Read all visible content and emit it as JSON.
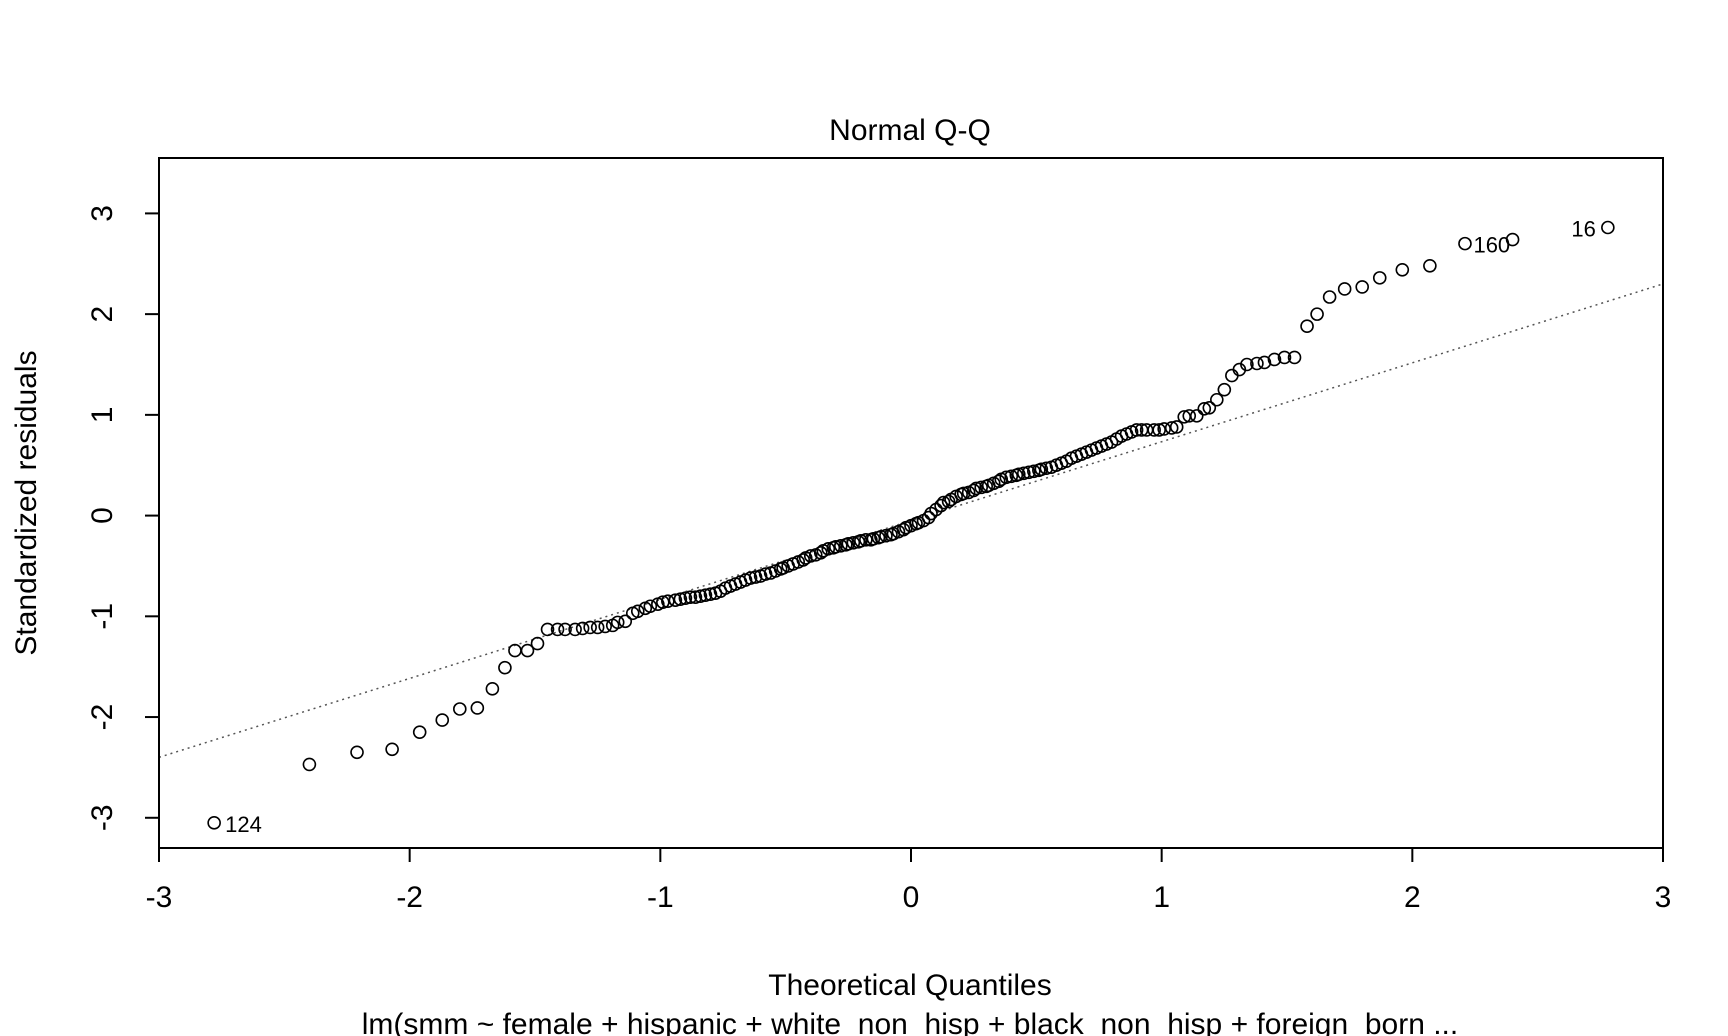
{
  "chart_data": {
    "type": "scatter",
    "title": "Normal Q-Q",
    "xlabel": "Theoretical Quantiles",
    "ylabel": "Standardized residuals",
    "subtitle": "lm(smm ~ female + hispanic + white_non_hisp + black_non_hisp + foreign_born ...",
    "xlim": [
      -3,
      3
    ],
    "ylim": [
      -3.3,
      3.55
    ],
    "x_ticks": [
      -3,
      -2,
      -1,
      0,
      1,
      2,
      3
    ],
    "y_ticks": [
      -3,
      -2,
      -1,
      0,
      1,
      2,
      3
    ],
    "grid": false,
    "legend": "none",
    "reference_line": {
      "style": "dotted",
      "x1": -3,
      "y1": -2.4,
      "x2": 3,
      "y2": 2.3
    },
    "labeled_points": [
      {
        "label": "124",
        "x": -2.78,
        "y": -3.05
      },
      {
        "label": "160",
        "x": 2.2,
        "y": 2.7
      },
      {
        "label": "16",
        "x": 2.78,
        "y": 2.86
      }
    ],
    "points": [
      [
        -2.78,
        -3.05
      ],
      [
        -2.4,
        -2.47
      ],
      [
        -2.21,
        -2.35
      ],
      [
        -2.07,
        -2.32
      ],
      [
        -1.96,
        -2.15
      ],
      [
        -1.87,
        -2.03
      ],
      [
        -1.8,
        -1.92
      ],
      [
        -1.73,
        -1.91
      ],
      [
        -1.67,
        -1.72
      ],
      [
        -1.62,
        -1.51
      ],
      [
        -1.58,
        -1.34
      ],
      [
        -1.53,
        -1.34
      ],
      [
        -1.49,
        -1.27
      ],
      [
        -1.45,
        -1.13
      ],
      [
        -1.41,
        -1.13
      ],
      [
        -1.38,
        -1.13
      ],
      [
        -1.34,
        -1.13
      ],
      [
        -1.31,
        -1.12
      ],
      [
        -1.28,
        -1.11
      ],
      [
        -1.25,
        -1.11
      ],
      [
        -1.22,
        -1.1
      ],
      [
        -1.19,
        -1.09
      ],
      [
        -1.17,
        -1.06
      ],
      [
        -1.14,
        -1.05
      ],
      [
        -1.11,
        -0.97
      ],
      [
        -1.09,
        -0.95
      ],
      [
        -1.06,
        -0.92
      ],
      [
        -1.04,
        -0.9
      ],
      [
        -1.01,
        -0.88
      ],
      [
        -0.99,
        -0.86
      ],
      [
        -0.97,
        -0.85
      ],
      [
        -0.94,
        -0.84
      ],
      [
        -0.92,
        -0.83
      ],
      [
        -0.9,
        -0.82
      ],
      [
        -0.88,
        -0.81
      ],
      [
        -0.86,
        -0.81
      ],
      [
        -0.84,
        -0.8
      ],
      [
        -0.82,
        -0.79
      ],
      [
        -0.8,
        -0.78
      ],
      [
        -0.78,
        -0.77
      ],
      [
        -0.76,
        -0.75
      ],
      [
        -0.74,
        -0.72
      ],
      [
        -0.72,
        -0.7
      ],
      [
        -0.7,
        -0.68
      ],
      [
        -0.68,
        -0.66
      ],
      [
        -0.66,
        -0.64
      ],
      [
        -0.64,
        -0.62
      ],
      [
        -0.62,
        -0.61
      ],
      [
        -0.6,
        -0.6
      ],
      [
        -0.58,
        -0.58
      ],
      [
        -0.56,
        -0.57
      ],
      [
        -0.54,
        -0.55
      ],
      [
        -0.52,
        -0.53
      ],
      [
        -0.51,
        -0.52
      ],
      [
        -0.49,
        -0.5
      ],
      [
        -0.47,
        -0.48
      ],
      [
        -0.45,
        -0.46
      ],
      [
        -0.43,
        -0.44
      ],
      [
        -0.42,
        -0.42
      ],
      [
        -0.4,
        -0.4
      ],
      [
        -0.38,
        -0.39
      ],
      [
        -0.36,
        -0.37
      ],
      [
        -0.35,
        -0.35
      ],
      [
        -0.33,
        -0.33
      ],
      [
        -0.31,
        -0.32
      ],
      [
        -0.3,
        -0.31
      ],
      [
        -0.28,
        -0.3
      ],
      [
        -0.26,
        -0.29
      ],
      [
        -0.25,
        -0.28
      ],
      [
        -0.23,
        -0.27
      ],
      [
        -0.21,
        -0.26
      ],
      [
        -0.2,
        -0.25
      ],
      [
        -0.18,
        -0.24
      ],
      [
        -0.16,
        -0.24
      ],
      [
        -0.15,
        -0.23
      ],
      [
        -0.13,
        -0.22
      ],
      [
        -0.12,
        -0.21
      ],
      [
        -0.1,
        -0.2
      ],
      [
        -0.08,
        -0.19
      ],
      [
        -0.07,
        -0.18
      ],
      [
        -0.05,
        -0.16
      ],
      [
        -0.03,
        -0.14
      ],
      [
        -0.02,
        -0.12
      ],
      [
        0.0,
        -0.1
      ],
      [
        0.02,
        -0.08
      ],
      [
        0.03,
        -0.07
      ],
      [
        0.05,
        -0.05
      ],
      [
        0.07,
        -0.02
      ],
      [
        0.08,
        0.02
      ],
      [
        0.1,
        0.06
      ],
      [
        0.12,
        0.1
      ],
      [
        0.13,
        0.13
      ],
      [
        0.15,
        0.14
      ],
      [
        0.16,
        0.16
      ],
      [
        0.18,
        0.19
      ],
      [
        0.2,
        0.21
      ],
      [
        0.21,
        0.22
      ],
      [
        0.23,
        0.23
      ],
      [
        0.25,
        0.25
      ],
      [
        0.26,
        0.27
      ],
      [
        0.28,
        0.28
      ],
      [
        0.3,
        0.29
      ],
      [
        0.31,
        0.3
      ],
      [
        0.33,
        0.32
      ],
      [
        0.35,
        0.34
      ],
      [
        0.36,
        0.36
      ],
      [
        0.38,
        0.38
      ],
      [
        0.4,
        0.39
      ],
      [
        0.42,
        0.4
      ],
      [
        0.43,
        0.41
      ],
      [
        0.45,
        0.42
      ],
      [
        0.47,
        0.43
      ],
      [
        0.49,
        0.44
      ],
      [
        0.51,
        0.45
      ],
      [
        0.52,
        0.46
      ],
      [
        0.54,
        0.47
      ],
      [
        0.56,
        0.48
      ],
      [
        0.58,
        0.5
      ],
      [
        0.6,
        0.52
      ],
      [
        0.62,
        0.54
      ],
      [
        0.64,
        0.57
      ],
      [
        0.66,
        0.59
      ],
      [
        0.68,
        0.61
      ],
      [
        0.7,
        0.63
      ],
      [
        0.72,
        0.65
      ],
      [
        0.74,
        0.67
      ],
      [
        0.76,
        0.69
      ],
      [
        0.78,
        0.71
      ],
      [
        0.8,
        0.73
      ],
      [
        0.82,
        0.76
      ],
      [
        0.84,
        0.79
      ],
      [
        0.86,
        0.81
      ],
      [
        0.88,
        0.83
      ],
      [
        0.9,
        0.85
      ],
      [
        0.92,
        0.85
      ],
      [
        0.94,
        0.85
      ],
      [
        0.97,
        0.85
      ],
      [
        0.99,
        0.85
      ],
      [
        1.01,
        0.86
      ],
      [
        1.04,
        0.87
      ],
      [
        1.06,
        0.88
      ],
      [
        1.09,
        0.98
      ],
      [
        1.11,
        0.99
      ],
      [
        1.14,
        0.99
      ],
      [
        1.17,
        1.06
      ],
      [
        1.19,
        1.07
      ],
      [
        1.22,
        1.15
      ],
      [
        1.25,
        1.25
      ],
      [
        1.28,
        1.39
      ],
      [
        1.31,
        1.45
      ],
      [
        1.34,
        1.5
      ],
      [
        1.38,
        1.51
      ],
      [
        1.41,
        1.52
      ],
      [
        1.45,
        1.55
      ],
      [
        1.49,
        1.57
      ],
      [
        1.53,
        1.57
      ],
      [
        1.58,
        1.88
      ],
      [
        1.62,
        2.0
      ],
      [
        1.67,
        2.17
      ],
      [
        1.73,
        2.25
      ],
      [
        1.8,
        2.27
      ],
      [
        1.87,
        2.36
      ],
      [
        1.96,
        2.44
      ],
      [
        2.07,
        2.48
      ],
      [
        2.21,
        2.7
      ],
      [
        2.4,
        2.74
      ],
      [
        2.78,
        2.86
      ]
    ]
  }
}
